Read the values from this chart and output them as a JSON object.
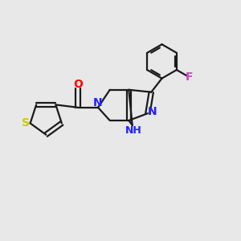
{
  "bg_color": "#e8e8e8",
  "bond_color": "#1a1a1a",
  "N_color": "#2020ff",
  "O_color": "#ff0000",
  "S_color": "#cccc00",
  "F_color": "#cc44cc",
  "line_width": 1.6,
  "font_size": 9,
  "xlim": [
    0,
    10
  ],
  "ylim": [
    0,
    10
  ]
}
